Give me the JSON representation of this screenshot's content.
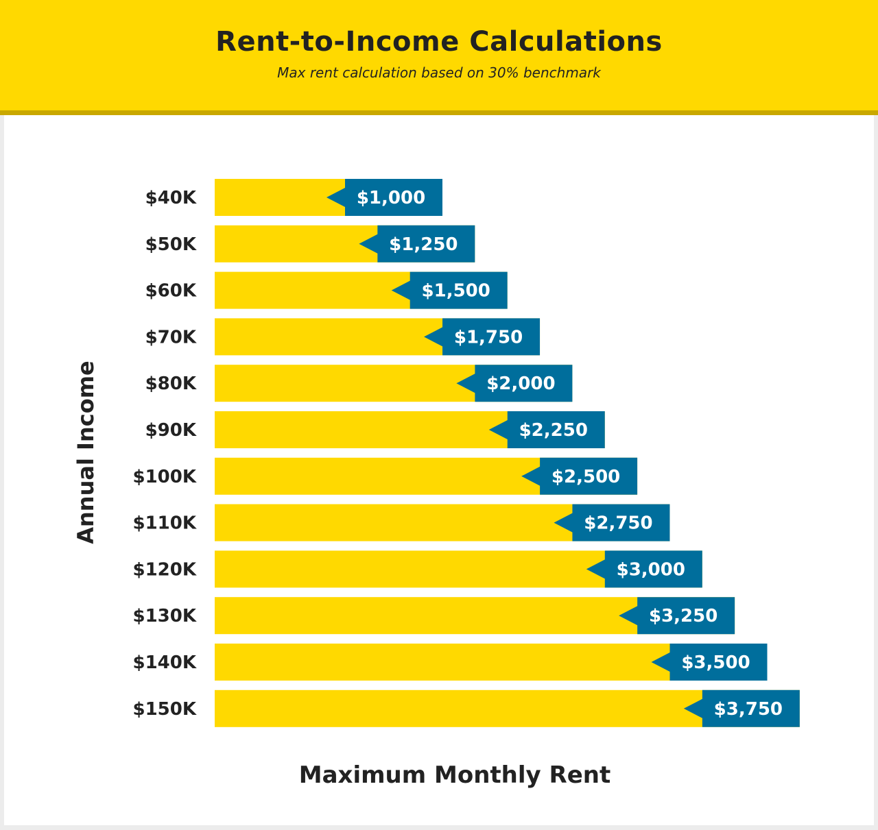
{
  "header": {
    "title": "Rent-to-Income Calculations",
    "subtitle": "Max rent calculation based on 30% benchmark"
  },
  "colors": {
    "header_bg": "#ffd900",
    "bar_yellow": "#ffd900",
    "tag_blue": "#006e9c",
    "text_dark": "#222222"
  },
  "chart_data": {
    "type": "bar",
    "orientation": "horizontal",
    "title": "Rent-to-Income Calculations",
    "subtitle": "Max rent calculation based on 30% benchmark",
    "xlabel": "Maximum Monthly Rent",
    "ylabel": "Annual Income",
    "categories": [
      "$40K",
      "$50K",
      "$60K",
      "$70K",
      "$80K",
      "$90K",
      "$100K",
      "$110K",
      "$120K",
      "$130K",
      "$140K",
      "$150K"
    ],
    "values": [
      1000,
      1250,
      1500,
      1750,
      2000,
      2250,
      2500,
      2750,
      3000,
      3250,
      3500,
      3750
    ],
    "data_labels": [
      "$1,000",
      "$1,250",
      "$1,500",
      "$1,750",
      "$2,000",
      "$2,250",
      "$2,500",
      "$2,750",
      "$3,000",
      "$3,250",
      "$3,500",
      "$3,750"
    ],
    "grid": false,
    "legend": "none"
  }
}
